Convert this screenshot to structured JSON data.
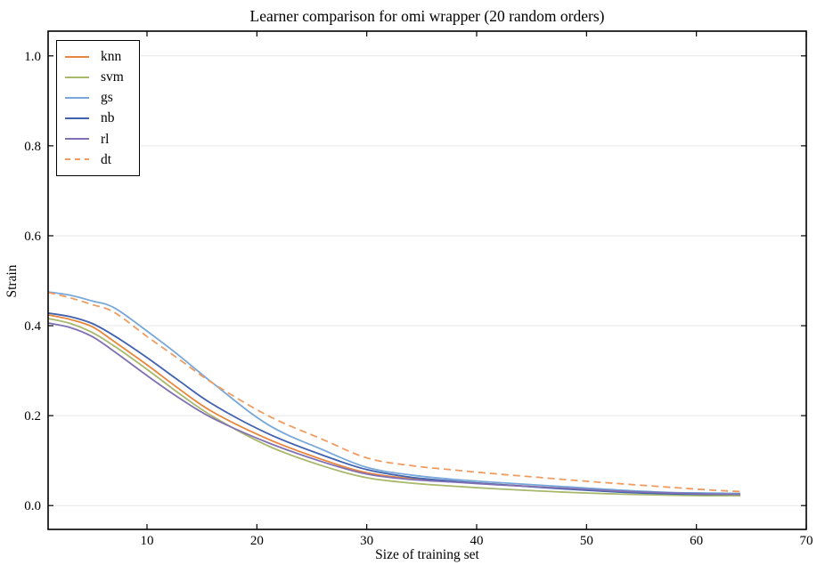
{
  "figure": {
    "background": "#ffffff"
  },
  "chart_data": {
    "type": "line",
    "title": "Learner comparison for omi wrapper (20 random orders)",
    "xlabel": "Size of training set",
    "ylabel": "Strain",
    "xlim": [
      1,
      70
    ],
    "ylim": [
      -0.053,
      1.055
    ],
    "xticks": [
      10,
      20,
      30,
      40,
      50,
      60,
      70
    ],
    "yticks": [
      0.0,
      0.2,
      0.4,
      0.6,
      0.8,
      1.0
    ],
    "ytick_labels": [
      "0.0",
      "0.2",
      "0.4",
      "0.6",
      "0.8",
      "1.0"
    ],
    "grid": "horizontal",
    "grid_color": "#e7e7e7",
    "axis_color": "#000000",
    "legend_position": "upper-left",
    "x": [
      1,
      3,
      5,
      7,
      10,
      13,
      16,
      21,
      26,
      30,
      34,
      38,
      42,
      46,
      50,
      54,
      58,
      61,
      64
    ],
    "series": [
      {
        "name": "knn",
        "color": "#e8863d",
        "style": "solid",
        "values": [
          0.424,
          0.414,
          0.398,
          0.365,
          0.313,
          0.258,
          0.208,
          0.148,
          0.102,
          0.073,
          0.06,
          0.053,
          0.047,
          0.041,
          0.036,
          0.031,
          0.028,
          0.026,
          0.025
        ]
      },
      {
        "name": "svm",
        "color": "#a8b86c",
        "style": "solid",
        "values": [
          0.416,
          0.405,
          0.385,
          0.355,
          0.303,
          0.248,
          0.198,
          0.133,
          0.088,
          0.062,
          0.05,
          0.043,
          0.037,
          0.032,
          0.028,
          0.025,
          0.023,
          0.022,
          0.022
        ]
      },
      {
        "name": "gs",
        "color": "#77a8d9",
        "style": "solid",
        "values": [
          0.475,
          0.468,
          0.455,
          0.44,
          0.388,
          0.332,
          0.272,
          0.18,
          0.124,
          0.085,
          0.068,
          0.058,
          0.051,
          0.045,
          0.039,
          0.033,
          0.029,
          0.028,
          0.027
        ]
      },
      {
        "name": "nb",
        "color": "#4062af",
        "style": "solid",
        "values": [
          0.428,
          0.42,
          0.405,
          0.378,
          0.329,
          0.276,
          0.225,
          0.16,
          0.112,
          0.08,
          0.063,
          0.054,
          0.047,
          0.04,
          0.034,
          0.029,
          0.026,
          0.025,
          0.025
        ]
      },
      {
        "name": "rl",
        "color": "#8070b4",
        "style": "solid",
        "values": [
          0.406,
          0.396,
          0.376,
          0.343,
          0.289,
          0.238,
          0.194,
          0.14,
          0.097,
          0.07,
          0.058,
          0.052,
          0.046,
          0.041,
          0.036,
          0.031,
          0.028,
          0.026,
          0.025
        ]
      },
      {
        "name": "dt",
        "color": "#f09c60",
        "style": "dashed",
        "values": [
          0.474,
          0.462,
          0.447,
          0.43,
          0.376,
          0.324,
          0.272,
          0.2,
          0.147,
          0.106,
          0.089,
          0.079,
          0.07,
          0.062,
          0.054,
          0.047,
          0.04,
          0.035,
          0.031
        ]
      }
    ]
  }
}
